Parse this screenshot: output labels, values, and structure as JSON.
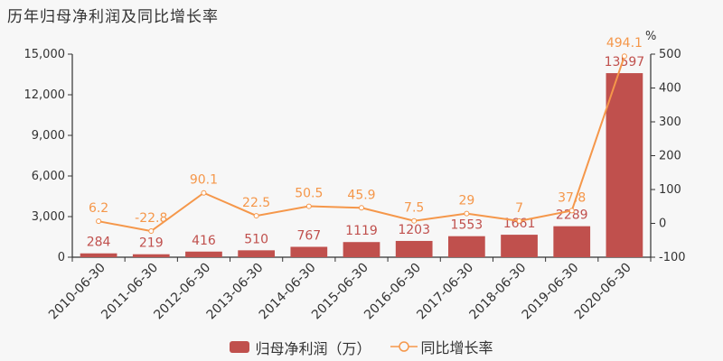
{
  "title": "历年归母净利润及同比增长率",
  "legend": {
    "bar_label": "归母净利润（万）",
    "line_label": "同比增长率"
  },
  "right_axis_unit": "%",
  "colors": {
    "bar": "#c0504d",
    "line": "#f5974a",
    "axis": "#333333",
    "background": "#f7f7f7"
  },
  "chart_data": {
    "type": "bar+line",
    "title": "历年归母净利润及同比增长率",
    "categories": [
      "2010-06-30",
      "2011-06-30",
      "2012-06-30",
      "2013-06-30",
      "2014-06-30",
      "2015-06-30",
      "2016-06-30",
      "2017-06-30",
      "2018-06-30",
      "2019-06-30",
      "2020-06-30"
    ],
    "series": [
      {
        "name": "归母净利润（万）",
        "type": "bar",
        "axis": "left",
        "values": [
          284,
          219,
          416,
          510,
          767,
          1119,
          1203,
          1553,
          1661,
          2289,
          13597
        ]
      },
      {
        "name": "同比增长率",
        "type": "line",
        "axis": "right",
        "values": [
          6.2,
          -22.8,
          90.1,
          22.5,
          50.5,
          45.9,
          7.5,
          29,
          7,
          37.8,
          494.1
        ]
      }
    ],
    "left_axis": {
      "ylim": [
        0,
        15000
      ],
      "ticks": [
        "0",
        "3,000",
        "6,000",
        "9,000",
        "12,000",
        "15,000"
      ]
    },
    "right_axis": {
      "label": "%",
      "ylim": [
        -100,
        500
      ],
      "ticks": [
        "-100",
        "0",
        "100",
        "200",
        "300",
        "400",
        "500"
      ]
    },
    "grid": false,
    "legend_position": "bottom"
  }
}
